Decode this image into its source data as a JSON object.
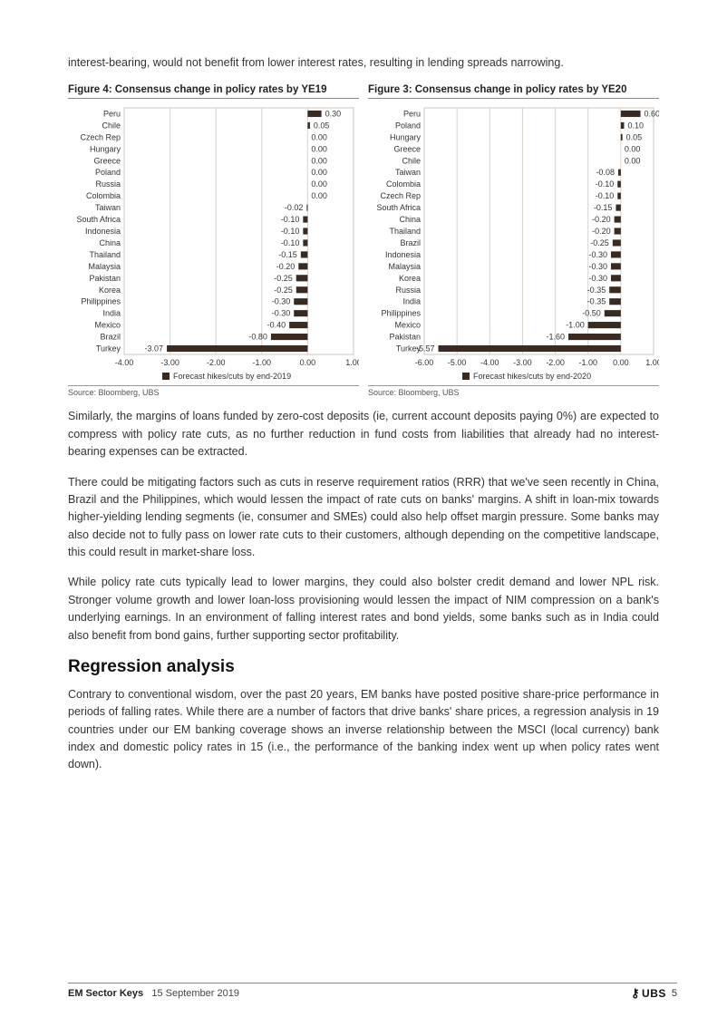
{
  "paragraphs": {
    "p0": "interest-bearing, would not benefit from lower interest rates, resulting in lending spreads narrowing.",
    "p1": "Similarly, the margins of loans funded by zero-cost deposits (ie, current account deposits paying 0%) are expected to compress with policy rate cuts, as no further reduction in fund costs from liabilities that already had no interest-bearing expenses can be extracted.",
    "p2": "There could be mitigating factors such as cuts in reserve requirement ratios (RRR) that we've seen recently in China, Brazil and the Philippines, which would lessen the impact of rate cuts on banks' margins. A shift in loan-mix towards higher-yielding lending segments (ie, consumer and SMEs) could also help offset margin pressure. Some banks may also decide not to fully pass on lower rate cuts to their customers, although depending on the competitive landscape, this could result in market-share loss.",
    "p3": "While policy rate cuts typically lead to lower margins, they could also bolster credit demand and lower NPL risk. Stronger volume growth and lower loan-loss provisioning would lessen the impact of NIM compression on a bank's underlying earnings. In an environment of falling interest rates and bond yields, some banks such as in India could also benefit from bond gains, further supporting sector profitability.",
    "p4": "Contrary to conventional wisdom, over the past 20 years, EM banks have posted positive share-price performance in periods of falling rates. While there are a number of factors that drive banks' share prices, a regression analysis in 19 countries under our EM banking coverage shows an inverse relationship between the MSCI (local currency) bank index and domestic policy rates in 15 (i.e., the performance of the banking index went up when policy rates went down)."
  },
  "section_heading": "Regression analysis",
  "fig4": {
    "caption": "Figure 4: Consensus change in policy rates by YE19",
    "type": "bar-horizontal",
    "categories": [
      "Peru",
      "Chile",
      "Czech Rep",
      "Hungary",
      "Greece",
      "Poland",
      "Russia",
      "Colombia",
      "Taiwan",
      "South Africa",
      "Indonesia",
      "China",
      "Thailand",
      "Malaysia",
      "Pakistan",
      "Korea",
      "Philippines",
      "India",
      "Mexico",
      "Brazil",
      "Turkey"
    ],
    "values": [
      0.3,
      0.05,
      0.0,
      0.0,
      0.0,
      0.0,
      0.0,
      0.0,
      -0.02,
      -0.1,
      -0.1,
      -0.1,
      -0.15,
      -0.2,
      -0.25,
      -0.25,
      -0.3,
      -0.3,
      -0.4,
      -0.8,
      -3.07
    ],
    "xlim": [
      -4.0,
      1.0
    ],
    "xticks": [
      -4.0,
      -3.0,
      -2.0,
      -1.0,
      0.0,
      1.0
    ],
    "legend": "Forecast hikes/cuts by end-2019",
    "source": "Source:  Bloomberg, UBS",
    "bar_color": "#3a2b22",
    "grid_color": "#d9d3cc",
    "axis_color": "#cfc8c0",
    "text_color": "#333333",
    "label_fontsize": 9,
    "tick_fontsize": 9,
    "background": "#ffffff"
  },
  "fig3": {
    "caption": "Figure 3: Consensus change in policy rates by YE20",
    "type": "bar-horizontal",
    "categories": [
      "Peru",
      "Poland",
      "Hungary",
      "Greece",
      "Chile",
      "Taiwan",
      "Colombia",
      "Czech Rep",
      "South Africa",
      "China",
      "Thailand",
      "Brazil",
      "Indonesia",
      "Malaysia",
      "Korea",
      "Russia",
      "India",
      "Philippines",
      "Mexico",
      "Pakistan",
      "Turkey"
    ],
    "values": [
      0.6,
      0.1,
      0.05,
      0.0,
      0.0,
      -0.08,
      -0.1,
      -0.1,
      -0.15,
      -0.2,
      -0.2,
      -0.25,
      -0.3,
      -0.3,
      -0.3,
      -0.35,
      -0.35,
      -0.5,
      -1.0,
      -1.6,
      -5.57
    ],
    "xlim": [
      -6.0,
      1.0
    ],
    "xticks": [
      -6.0,
      -5.0,
      -4.0,
      -3.0,
      -2.0,
      -1.0,
      0.0,
      1.0
    ],
    "legend": "Forecast hikes/cuts by end-2020",
    "source": "Source:  Bloomberg, UBS",
    "bar_color": "#3a2b22",
    "grid_color": "#d9d3cc",
    "axis_color": "#cfc8c0",
    "text_color": "#333333",
    "label_fontsize": 9,
    "tick_fontsize": 9,
    "background": "#ffffff"
  },
  "footer": {
    "title": "EM Sector Keys",
    "date": "15 September 2019",
    "brand": "UBS",
    "page": "5"
  }
}
